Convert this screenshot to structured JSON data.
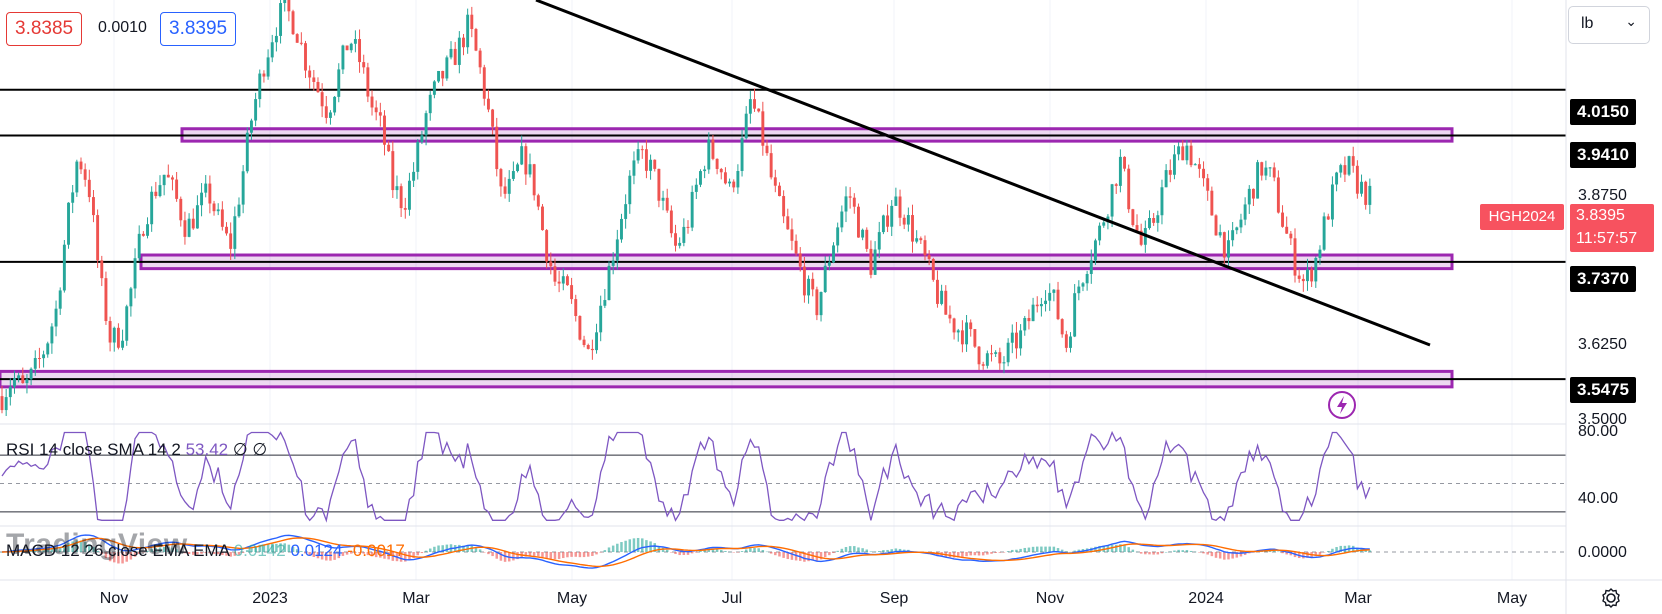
{
  "quote": {
    "bid": "3.8385",
    "spread": "0.0010",
    "ask": "3.8395"
  },
  "unit_selector": {
    "value": "lb"
  },
  "symbol_tag": {
    "label": "HGH2024"
  },
  "last_price": {
    "price": "3.8395",
    "countdown": "11:57:57"
  },
  "level_tags": [
    "4.0150",
    "3.9410",
    "3.7370",
    "3.5475"
  ],
  "price_axis": {
    "labels": [
      "3.8750",
      "3.6250",
      "3.5000"
    ]
  },
  "rsi_axis": {
    "labels": [
      "80.00",
      "40.00"
    ]
  },
  "macd_axis": {
    "labels": [
      "0.0000"
    ]
  },
  "time_axis": {
    "labels": [
      "Nov",
      "2023",
      "Mar",
      "May",
      "Jul",
      "Sep",
      "Nov",
      "2024",
      "Mar",
      "May"
    ]
  },
  "rsi_legend": {
    "name": "RSI 14 close SMA 14 2",
    "value": "53.42",
    "extra1": "∅",
    "extra2": "∅"
  },
  "macd_legend": {
    "name": "MACD 12 26 close EMA EMA",
    "hist": "0.0142",
    "macd": "0.0124",
    "signal": "-0.0017"
  },
  "watermark": "TradingView",
  "colors": {
    "up": "#26a69a",
    "down": "#ef5350",
    "zone": "#9c27b0",
    "rsi": "#7e57c2",
    "macd": "#2962ff",
    "signal": "#ff6d00",
    "last": "#f7525f"
  },
  "icons": [
    "settings-icon",
    "lightning-icon",
    "chevron-down-icon"
  ],
  "chart_data": {
    "type": "candlestick",
    "symbol": "HGH2024",
    "price_range": [
      3.475,
      4.16
    ],
    "horizontal_levels": [
      4.015,
      3.941,
      3.737,
      3.5475
    ],
    "zones": [
      [
        3.932,
        3.952
      ],
      [
        3.726,
        3.748
      ],
      [
        3.535,
        3.56
      ]
    ],
    "trendline": [
      [
        4.17,
        3.6
      ]
    ],
    "close_path": [
      3.52,
      3.55,
      3.53,
      3.56,
      3.6,
      3.66,
      3.8,
      3.91,
      3.86,
      3.71,
      3.61,
      3.62,
      3.7,
      3.8,
      3.85,
      3.88,
      3.84,
      3.79,
      3.82,
      3.85,
      3.8,
      3.76,
      3.86,
      3.97,
      4.05,
      4.11,
      4.15,
      4.12,
      4.06,
      4.02,
      3.98,
      4.04,
      4.1,
      4.06,
      3.99,
      3.95,
      3.86,
      3.83,
      3.89,
      3.97,
      4.02,
      4.05,
      4.08,
      4.12,
      4.05,
      3.96,
      3.84,
      3.86,
      3.91,
      3.86,
      3.77,
      3.7,
      3.69,
      3.64,
      3.59,
      3.66,
      3.73,
      3.81,
      3.88,
      3.91,
      3.88,
      3.82,
      3.76,
      3.79,
      3.86,
      3.92,
      3.9,
      3.85,
      3.91,
      4.0,
      3.94,
      3.86,
      3.8,
      3.75,
      3.7,
      3.66,
      3.73,
      3.8,
      3.85,
      3.79,
      3.73,
      3.78,
      3.84,
      3.82,
      3.78,
      3.74,
      3.69,
      3.65,
      3.63,
      3.62,
      3.59,
      3.58,
      3.57,
      3.6,
      3.62,
      3.66,
      3.7,
      3.67,
      3.6,
      3.69,
      3.74,
      3.78,
      3.84,
      3.9,
      3.82,
      3.76,
      3.8,
      3.86,
      3.9,
      3.93,
      3.89,
      3.84,
      3.79,
      3.75,
      3.8,
      3.85,
      3.89,
      3.87,
      3.8,
      3.74,
      3.7,
      3.74,
      3.81,
      3.87,
      3.89,
      3.86,
      3.84
    ],
    "rsi": {
      "levels": [
        70,
        50,
        30
      ],
      "axis_labels": [
        80,
        40
      ]
    },
    "macd": {
      "zero": 0
    }
  }
}
